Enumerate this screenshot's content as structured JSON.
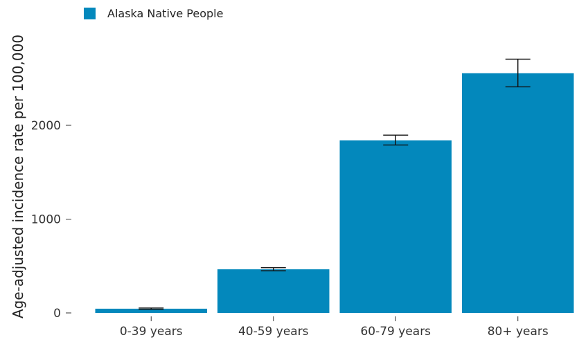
{
  "chart_data": {
    "type": "bar",
    "title": "",
    "xlabel": "",
    "ylabel": "Age-adjusted incidence rate per 100,000",
    "categories": [
      "0-39 years",
      "40-59 years",
      "60-79 years",
      "80+ years"
    ],
    "series": [
      {
        "name": "Alaska Native People",
        "color": "#0388bc",
        "values": [
          45,
          465,
          1840,
          2555
        ],
        "error_low": [
          38,
          450,
          1790,
          2410
        ],
        "error_high": [
          52,
          482,
          1895,
          2705
        ]
      }
    ],
    "ylim": [
      0,
      2800
    ],
    "yticks": [
      0,
      1000,
      2000
    ],
    "grid": false,
    "legend_position": "top-left"
  }
}
